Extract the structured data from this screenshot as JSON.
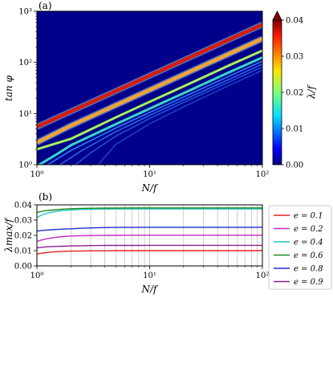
{
  "chart_data": [
    {
      "panel_label": "(a)",
      "type": "heatmap",
      "xlabel": "N/f",
      "ylabel": "tan φ",
      "xscale": "log",
      "yscale": "log",
      "xlim": [
        1,
        100
      ],
      "ylim": [
        1,
        1000
      ],
      "x_ticks": [
        "10⁰",
        "10¹",
        "10²"
      ],
      "y_ticks": [
        "10⁰",
        "10¹",
        "10²",
        "10³"
      ],
      "background_color": "#00008b",
      "colorbar": {
        "label": "λ/f",
        "range": [
          0.0,
          0.04
        ],
        "ticks": [
          "0.00",
          "0.01",
          "0.02",
          "0.03",
          "0.04"
        ],
        "colormap": "jet",
        "extend": "max"
      },
      "ridges": [
        {
          "level": 0.04,
          "color": "#d81a10",
          "points": [
            [
              1,
              5.5
            ],
            [
              2,
              11
            ],
            [
              5,
              27.5
            ],
            [
              10,
              55
            ],
            [
              20,
              110
            ],
            [
              50,
              275
            ],
            [
              100,
              550
            ]
          ]
        },
        {
          "level": 0.03,
          "color": "#f2a23a",
          "points": [
            [
              1,
              2.7
            ],
            [
              2,
              5.8
            ],
            [
              5,
              14.5
            ],
            [
              10,
              29
            ],
            [
              20,
              58
            ],
            [
              50,
              145
            ],
            [
              100,
              290
            ]
          ]
        },
        {
          "level": 0.02,
          "color": "#a8f05a",
          "points": [
            [
              1,
              2.0
            ],
            [
              2,
              3.2
            ],
            [
              5,
              8.4
            ],
            [
              10,
              17
            ],
            [
              20,
              34
            ],
            [
              50,
              86
            ],
            [
              100,
              170
            ]
          ]
        },
        {
          "level": 0.015,
          "color": "#3ad6c8",
          "points": [
            [
              1.05,
              1.0
            ],
            [
              1.5,
              1.6
            ],
            [
              2,
              2.4
            ],
            [
              5,
              6.2
            ],
            [
              10,
              12.5
            ],
            [
              20,
              25
            ],
            [
              50,
              63
            ],
            [
              100,
              125
            ]
          ]
        },
        {
          "level": 0.01,
          "color": "#2e7ef2",
          "points": [
            [
              1.25,
              1.0
            ],
            [
              2,
              1.9
            ],
            [
              5,
              5.2
            ],
            [
              10,
              10.5
            ],
            [
              20,
              21
            ],
            [
              50,
              53
            ],
            [
              100,
              106
            ]
          ]
        },
        {
          "level": 0.007,
          "color": "#2a62e6",
          "points": [
            [
              1.6,
              1.0
            ],
            [
              2.5,
              1.9
            ],
            [
              5,
              4.4
            ],
            [
              10,
              9.2
            ],
            [
              20,
              18.5
            ],
            [
              50,
              46
            ],
            [
              100,
              93
            ]
          ]
        },
        {
          "level": 0.005,
          "color": "#1f4fd8",
          "points": [
            [
              2.2,
              1.0
            ],
            [
              3,
              1.7
            ],
            [
              5,
              3.6
            ],
            [
              10,
              8.0
            ],
            [
              20,
              16.5
            ],
            [
              50,
              41
            ],
            [
              100,
              82
            ]
          ]
        },
        {
          "level": 0.003,
          "color": "#1840c8",
          "points": [
            [
              3.5,
              1.0
            ],
            [
              5,
              2.5
            ],
            [
              10,
              6.3
            ],
            [
              20,
              13.5
            ],
            [
              50,
              35
            ],
            [
              100,
              70
            ]
          ]
        }
      ]
    },
    {
      "panel_label": "(b)",
      "type": "line",
      "xlabel": "N/f",
      "ylabel": "λmax/f",
      "xscale": "log",
      "xlim": [
        1,
        100
      ],
      "ylim": [
        0.0,
        0.04
      ],
      "x_ticks": [
        "10⁰",
        "10¹",
        "10²"
      ],
      "y_ticks": [
        "0.00",
        "0.01",
        "0.02",
        "0.03",
        "0.04"
      ],
      "grid": "x-minor",
      "legend_position": "right, outside",
      "x": [
        1,
        1.1,
        1.2,
        1.35,
        1.5,
        1.7,
        2,
        2.5,
        3,
        4,
        5,
        7,
        10,
        20,
        50,
        100
      ],
      "series": [
        {
          "name": "e = 0.1",
          "color": "#e8211f",
          "values": [
            0.0078,
            0.0083,
            0.0087,
            0.0091,
            0.0093,
            0.0095,
            0.0097,
            0.0098,
            0.0099,
            0.0099,
            0.01,
            0.01,
            0.01,
            0.01,
            0.01,
            0.01
          ]
        },
        {
          "name": "e = 0.2",
          "color": "#c727c6",
          "values": [
            0.016,
            0.017,
            0.0177,
            0.0183,
            0.0188,
            0.0192,
            0.0196,
            0.0198,
            0.0199,
            0.02,
            0.02,
            0.0201,
            0.0201,
            0.0201,
            0.0201,
            0.0201
          ]
        },
        {
          "name": "e = 0.4",
          "color": "#26c4c4",
          "values": [
            0.0318,
            0.0332,
            0.0343,
            0.0352,
            0.0358,
            0.0363,
            0.0367,
            0.037,
            0.0371,
            0.0372,
            0.0373,
            0.0373,
            0.0373,
            0.0373,
            0.0373,
            0.0373
          ]
        },
        {
          "name": "e = 0.6",
          "color": "#1f8a1f",
          "values": [
            0.035,
            0.0357,
            0.0362,
            0.0366,
            0.0369,
            0.0372,
            0.0375,
            0.0377,
            0.0378,
            0.0379,
            0.0379,
            0.038,
            0.038,
            0.038,
            0.038,
            0.038
          ]
        },
        {
          "name": "e = 0.8",
          "color": "#1f2fd8",
          "values": [
            0.0228,
            0.0232,
            0.0235,
            0.0237,
            0.0239,
            0.0241,
            0.0243,
            0.0247,
            0.0249,
            0.0251,
            0.0252,
            0.0252,
            0.0253,
            0.0253,
            0.0253,
            0.0253
          ]
        },
        {
          "name": "e = 0.9",
          "color": "#8e1f94",
          "values": [
            0.0118,
            0.0122,
            0.0125,
            0.0127,
            0.0128,
            0.0129,
            0.0131,
            0.0132,
            0.0133,
            0.0134,
            0.0134,
            0.0134,
            0.0135,
            0.0135,
            0.0135,
            0.0135
          ]
        }
      ]
    }
  ]
}
